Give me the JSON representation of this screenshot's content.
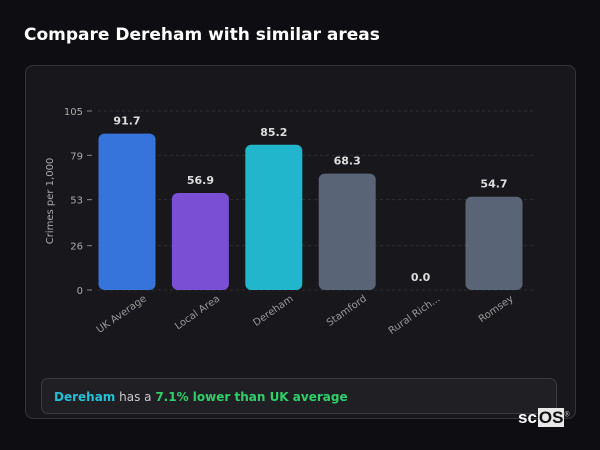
{
  "title": "Compare Dereham with similar areas",
  "chart_data": {
    "type": "bar",
    "ylabel": "Crimes per 1,000",
    "ylim": [
      0,
      105
    ],
    "yticks": [
      0,
      26,
      53,
      79,
      105
    ],
    "grid": true,
    "categories": [
      "UK Average",
      "Local Area",
      "Dereham",
      "Stamford",
      "Rural Rich...",
      "Romsey"
    ],
    "values": [
      91.7,
      56.9,
      85.2,
      68.3,
      0.0,
      54.7
    ],
    "labels": [
      "91.7",
      "56.9",
      "85.2",
      "68.3",
      "0.0",
      "54.7"
    ],
    "colors": [
      "#3674dc",
      "#7a4fd3",
      "#21b6cb",
      "#5a6477",
      "#5a6477",
      "#5a6477"
    ]
  },
  "summary": {
    "area": "Dereham",
    "middle": " has a ",
    "comparison": "7.1% lower than UK average"
  },
  "logo": {
    "text_a": "sc",
    "text_b": "OS",
    "mark": "®"
  }
}
